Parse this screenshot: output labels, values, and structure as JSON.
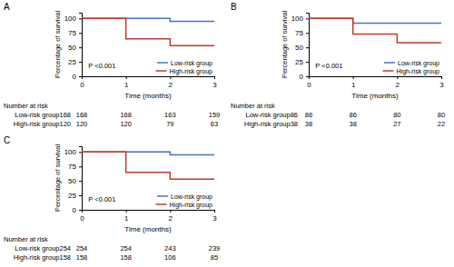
{
  "chart_data": [
    {
      "type": "step",
      "title": "A",
      "x_label": "Time (months)",
      "y_label": "Percentage of survival",
      "xlim": [
        0,
        3
      ],
      "ylim": [
        0,
        110
      ],
      "xticks": [
        0,
        1,
        2,
        3
      ],
      "yticks": [
        0,
        25,
        50,
        75,
        100
      ],
      "grid": false,
      "legend": "lower right",
      "series": [
        {
          "name": "Low-risk group",
          "color": "#4472c4",
          "x": [
            0,
            1,
            2,
            3
          ],
          "values": [
            100,
            100,
            95,
            95
          ]
        },
        {
          "name": "High-risk group",
          "color": "#c0392b",
          "x": [
            0,
            1,
            1,
            2,
            2,
            3
          ],
          "values": [
            100,
            100,
            65,
            65,
            53,
            53
          ]
        }
      ],
      "annotations": [
        "P <0.001"
      ],
      "at_risk": {
        "title": "Number at risk",
        "rows": [
          {
            "label": "Low-risk group168",
            "values": [
              168,
              168,
              163,
              159
            ]
          },
          {
            "label": "High-risk group120",
            "values": [
              120,
              120,
              79,
              63
            ]
          }
        ]
      }
    },
    {
      "type": "step",
      "title": "B",
      "x_label": "Time (months)",
      "y_label": "Percentage of survival",
      "xlim": [
        0,
        3
      ],
      "ylim": [
        0,
        110
      ],
      "xticks": [
        0,
        1,
        2,
        3
      ],
      "yticks": [
        0,
        25,
        50,
        75,
        100
      ],
      "grid": false,
      "legend": "lower right",
      "series": [
        {
          "name": "Low-risk group",
          "color": "#4472c4",
          "x": [
            0,
            1,
            1,
            3
          ],
          "values": [
            100,
            100,
            92,
            92
          ]
        },
        {
          "name": "High-risk group",
          "color": "#c0392b",
          "x": [
            0,
            1,
            1,
            2,
            2,
            3
          ],
          "values": [
            100,
            100,
            73,
            73,
            58,
            58
          ]
        }
      ],
      "annotations": [
        "P <0.001"
      ],
      "at_risk": {
        "title": "Number at risk",
        "rows": [
          {
            "label": "Low-risk group86",
            "values": [
              86,
              86,
              80,
              80
            ]
          },
          {
            "label": "High-risk group38",
            "values": [
              38,
              38,
              27,
              22
            ]
          }
        ]
      }
    },
    {
      "type": "step",
      "title": "C",
      "x_label": "Time (months)",
      "y_label": "Percentage of survival",
      "xlim": [
        0,
        3
      ],
      "ylim": [
        0,
        110
      ],
      "xticks": [
        0,
        1,
        2,
        3
      ],
      "yticks": [
        0,
        25,
        50,
        75,
        100
      ],
      "grid": false,
      "legend": "lower right",
      "series": [
        {
          "name": "Low-risk group",
          "color": "#4472c4",
          "x": [
            0,
            1,
            2,
            3
          ],
          "values": [
            100,
            100,
            95,
            95
          ]
        },
        {
          "name": "High-risk group",
          "color": "#c0392b",
          "x": [
            0,
            1,
            1,
            2,
            2,
            3
          ],
          "values": [
            100,
            100,
            65,
            65,
            53,
            53
          ]
        }
      ],
      "annotations": [
        "P <0.001"
      ],
      "at_risk": {
        "title": "Number at risk",
        "rows": [
          {
            "label": "Low-risk group254",
            "values": [
              254,
              254,
              243,
              239
            ]
          },
          {
            "label": "High-risk group158",
            "values": [
              158,
              158,
              106,
              85
            ]
          }
        ]
      }
    }
  ]
}
